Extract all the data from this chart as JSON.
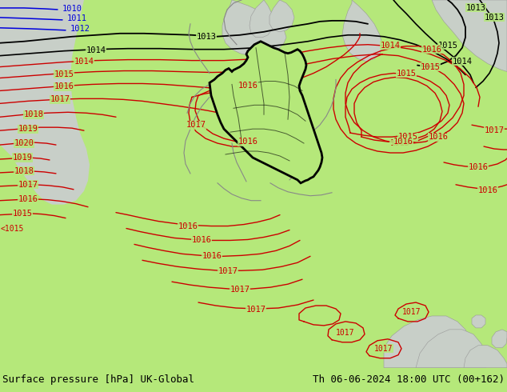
{
  "title_left": "Surface pressure [hPa] UK-Global",
  "title_right": "Th 06-06-2024 18:00 UTC (00+162)",
  "bg_green": "#b5e87a",
  "bg_gray": "#c8cfc8",
  "bg_white": "#ffffff",
  "figsize": [
    6.34,
    4.9
  ],
  "dpi": 100,
  "title_fontsize": 9
}
